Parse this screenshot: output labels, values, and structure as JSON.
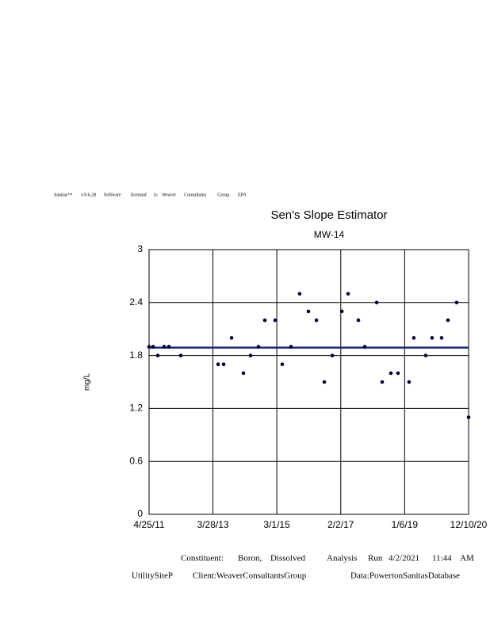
{
  "header": [
    "Sanitas™",
    "v.9.6.28",
    "Software",
    "licensed",
    "to",
    "Weaver",
    "Consultants",
    "Group.",
    "EPA"
  ],
  "chart_data": {
    "type": "scatter",
    "title": "Sen's Slope Estimator",
    "subtitle": "MW-14",
    "y_label": "mg/L",
    "x": [
      "4/25/11",
      "6/8/11",
      "7/30/11",
      "10/8/11",
      "11/29/11",
      "4/8/12",
      "5/24/13",
      "7/24/13",
      "10/19/13",
      "2/27/14",
      "5/16/14",
      "8/11/14",
      "10/20/14",
      "2/11/15",
      "4/30/15",
      "8/4/15",
      "11/8/15",
      "2/12/16",
      "5/10/16",
      "8/5/16",
      "11/1/16",
      "2/14/17",
      "4/24/17",
      "8/15/17",
      "10/24/17",
      "3/4/18",
      "5/4/18",
      "8/8/18",
      "10/25/18",
      "2/24/19",
      "4/17/19",
      "8/26/19",
      "11/4/19",
      "2/17/20",
      "4/27/20",
      "7/31/20",
      "12/10/20"
    ],
    "values": [
      1.9,
      1.9,
      1.8,
      1.9,
      1.9,
      1.8,
      1.7,
      1.7,
      2.0,
      1.6,
      1.8,
      1.9,
      2.2,
      2.2,
      1.7,
      1.9,
      2.5,
      2.3,
      2.2,
      1.5,
      1.8,
      2.3,
      2.5,
      2.2,
      1.9,
      2.4,
      1.5,
      1.6,
      1.6,
      1.5,
      2.0,
      1.8,
      2.0,
      2.0,
      2.2,
      2.4,
      1.1
    ],
    "color": "#000033",
    "trend": {
      "x": [
        "4/25/11",
        "12/10/20"
      ],
      "values": [
        1.89,
        1.89
      ],
      "color": "#1f2a7a"
    },
    "xlim": [
      "4/25/11",
      "12/10/20"
    ],
    "xticks": [
      "4/25/11",
      "3/28/13",
      "3/1/15",
      "2/2/17",
      "1/6/19",
      "12/10/20"
    ],
    "ylim": [
      0,
      3
    ],
    "yticks": [
      0,
      0.6,
      1.2,
      1.8,
      2.4,
      3
    ],
    "grid": true
  },
  "footer": {
    "line1": [
      "Constituent:",
      "Boron,",
      "Dissolved",
      "Analysis",
      "Run",
      "4/2/2021",
      "11:44",
      "AM"
    ],
    "line2": [
      "UtilitySiteP",
      "Client:WeaverConsultantsGroup",
      "Data:PowertonSanitasDatabase"
    ]
  }
}
